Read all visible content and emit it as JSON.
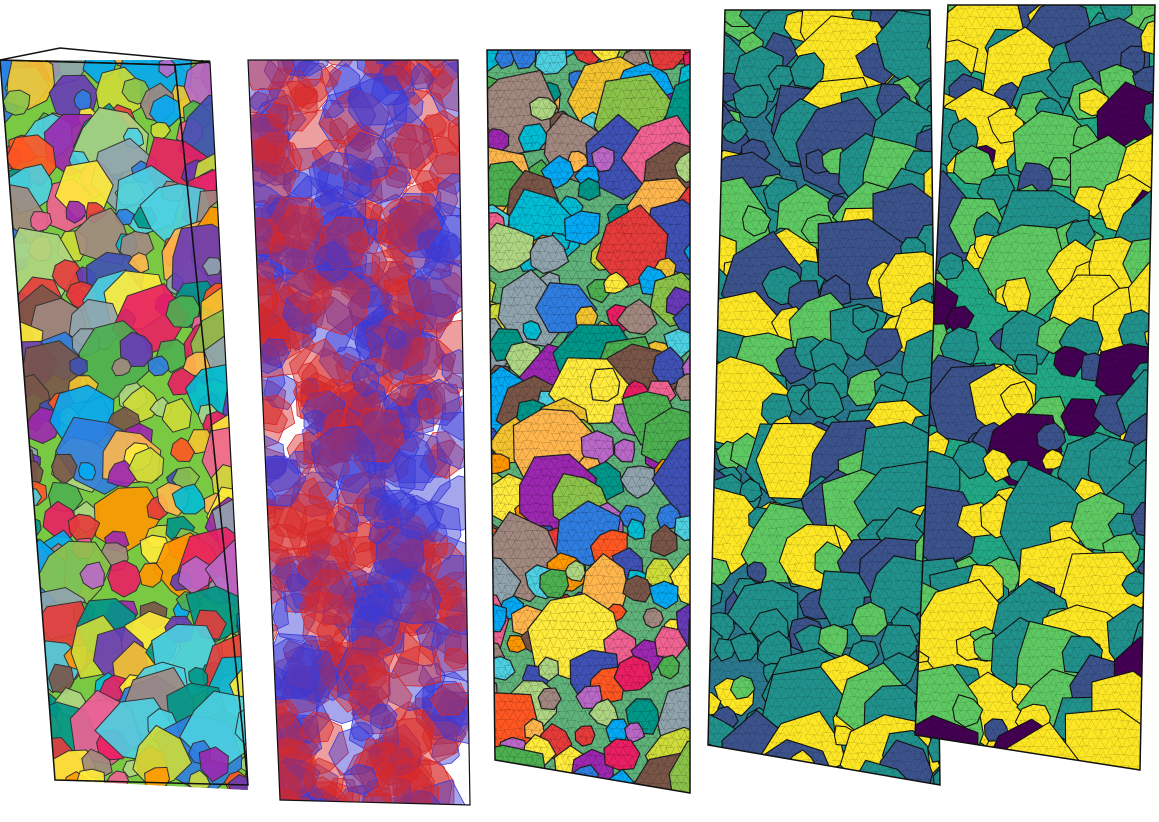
{
  "figure": {
    "background": "#ffffff",
    "panels": [
      {
        "id": "panel-1",
        "kind": "polycrystal-grains-random-colors",
        "palette": [
          "#e63b3b",
          "#2f7de0",
          "#f4c430",
          "#4caf50",
          "#9c27b0",
          "#ff9800",
          "#00bcd4",
          "#8bc34a",
          "#e91e63",
          "#795548",
          "#3f51b5",
          "#cddc39",
          "#ff5722",
          "#009688",
          "#ffeb3b",
          "#673ab7",
          "#03a9f4",
          "#f06292",
          "#aed581",
          "#ffb74d",
          "#4dd0e1",
          "#ba68c8",
          "#90a4ae",
          "#a1887f"
        ]
      },
      {
        "id": "panel-2",
        "kind": "translucent-red-blue-crystals",
        "palette": [
          "#d62828",
          "#3a3ad8"
        ]
      },
      {
        "id": "panel-3",
        "kind": "meshed-grains-random-colors",
        "palette": [
          "#e63b3b",
          "#2f7de0",
          "#f4c430",
          "#4caf50",
          "#9c27b0",
          "#ff9800",
          "#00bcd4",
          "#8bc34a",
          "#e91e63",
          "#795548",
          "#3f51b5",
          "#cddc39",
          "#ff5722",
          "#009688",
          "#ffeb3b",
          "#673ab7",
          "#03a9f4",
          "#f06292",
          "#aed581",
          "#ffb74d",
          "#4dd0e1",
          "#ba68c8",
          "#90a4ae",
          "#a1887f"
        ]
      },
      {
        "id": "panel-4",
        "kind": "field-map-viridis-small-deformation",
        "palette": [
          "#440154",
          "#3b528b",
          "#21918c",
          "#5ec962",
          "#fde725"
        ]
      },
      {
        "id": "panel-5",
        "kind": "field-map-viridis-large-deformation",
        "palette": [
          "#440154",
          "#3b528b",
          "#21918c",
          "#5ec962",
          "#fde725"
        ]
      }
    ],
    "outline_color": "#111111"
  }
}
